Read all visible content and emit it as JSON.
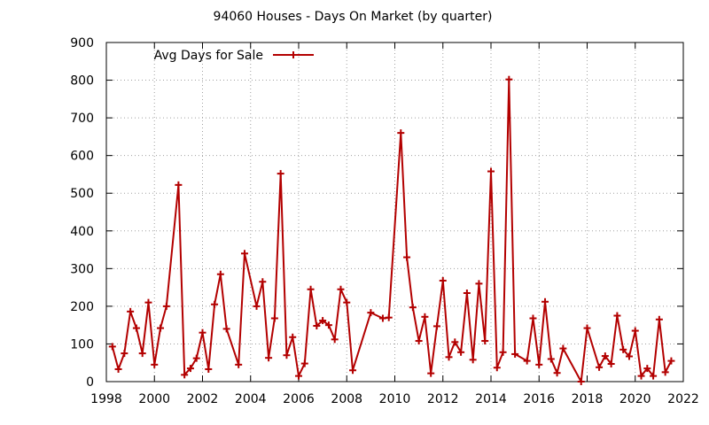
{
  "chart_data": {
    "type": "line",
    "title": "94060 Houses - Days On Market (by quarter)",
    "xlabel": "",
    "ylabel": "",
    "xlim": [
      1998,
      2022
    ],
    "ylim": [
      0,
      900
    ],
    "x_ticks": [
      "1998",
      "2000",
      "2002",
      "2004",
      "2006",
      "2008",
      "2010",
      "2012",
      "2014",
      "2016",
      "2018",
      "2020",
      "2022"
    ],
    "y_ticks": [
      "0",
      "100",
      "200",
      "300",
      "400",
      "500",
      "600",
      "700",
      "800",
      "900"
    ],
    "grid": true,
    "legend_position": "top-left",
    "series": [
      {
        "name": "Avg Days for Sale",
        "color": "#b30000",
        "marker": "plus",
        "points": [
          [
            1998.25,
            93
          ],
          [
            1998.5,
            33
          ],
          [
            1998.75,
            75
          ],
          [
            1999.0,
            186
          ],
          [
            1999.25,
            142
          ],
          [
            1999.5,
            75
          ],
          [
            1999.75,
            210
          ],
          [
            2000.0,
            45
          ],
          [
            2000.25,
            142
          ],
          [
            2000.5,
            200
          ],
          [
            2001.0,
            522
          ],
          [
            2001.25,
            18
          ],
          [
            2001.5,
            35
          ],
          [
            2001.75,
            62
          ],
          [
            2002.0,
            130
          ],
          [
            2002.25,
            33
          ],
          [
            2002.5,
            205
          ],
          [
            2002.75,
            285
          ],
          [
            2003.0,
            140
          ],
          [
            2003.5,
            45
          ],
          [
            2003.75,
            340
          ],
          [
            2004.25,
            200
          ],
          [
            2004.5,
            265
          ],
          [
            2004.75,
            63
          ],
          [
            2005.0,
            168
          ],
          [
            2005.25,
            552
          ],
          [
            2005.5,
            70
          ],
          [
            2005.75,
            118
          ],
          [
            2006.0,
            15
          ],
          [
            2006.25,
            48
          ],
          [
            2006.5,
            245
          ],
          [
            2006.75,
            148
          ],
          [
            2007.0,
            162
          ],
          [
            2007.25,
            150
          ],
          [
            2007.5,
            112
          ],
          [
            2007.75,
            245
          ],
          [
            2008.0,
            210
          ],
          [
            2008.25,
            30
          ],
          [
            2009.0,
            183
          ],
          [
            2009.5,
            168
          ],
          [
            2009.75,
            170
          ],
          [
            2010.25,
            660
          ],
          [
            2010.5,
            330
          ],
          [
            2010.75,
            197
          ],
          [
            2011.0,
            108
          ],
          [
            2011.25,
            172
          ],
          [
            2011.5,
            22
          ],
          [
            2011.75,
            147
          ],
          [
            2012.0,
            268
          ],
          [
            2012.25,
            65
          ],
          [
            2012.5,
            105
          ],
          [
            2012.75,
            78
          ],
          [
            2013.0,
            235
          ],
          [
            2013.25,
            58
          ],
          [
            2013.5,
            260
          ],
          [
            2013.75,
            108
          ],
          [
            2014.0,
            558
          ],
          [
            2014.25,
            37
          ],
          [
            2014.5,
            78
          ],
          [
            2014.75,
            802
          ],
          [
            2015.0,
            73
          ],
          [
            2015.5,
            55
          ],
          [
            2015.75,
            168
          ],
          [
            2016.0,
            45
          ],
          [
            2016.25,
            212
          ],
          [
            2016.5,
            60
          ],
          [
            2016.75,
            23
          ],
          [
            2017.0,
            88
          ],
          [
            2017.75,
            0
          ],
          [
            2018.0,
            142
          ],
          [
            2018.5,
            38
          ],
          [
            2018.75,
            68
          ],
          [
            2019.0,
            47
          ],
          [
            2019.25,
            175
          ],
          [
            2019.5,
            85
          ],
          [
            2019.75,
            67
          ],
          [
            2020.0,
            135
          ],
          [
            2020.25,
            15
          ],
          [
            2020.5,
            35
          ],
          [
            2020.75,
            15
          ],
          [
            2021.0,
            165
          ],
          [
            2021.25,
            25
          ],
          [
            2021.5,
            55
          ]
        ]
      }
    ]
  }
}
